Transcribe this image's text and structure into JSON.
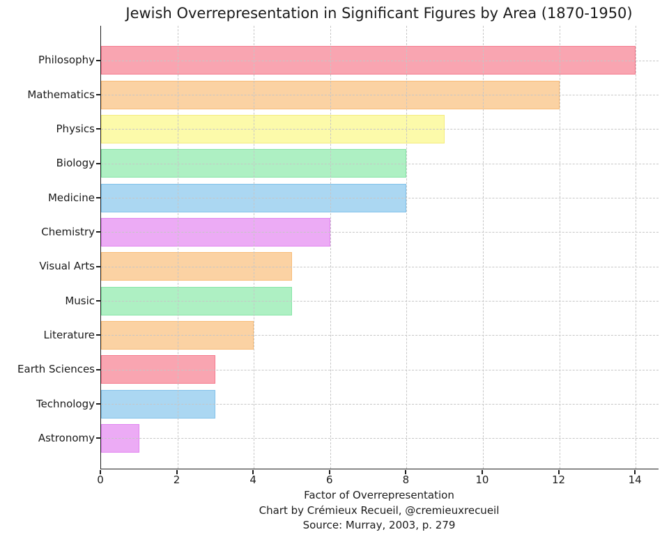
{
  "chart_data": {
    "type": "bar",
    "orientation": "horizontal",
    "title": "Jewish Overrepresentation in Significant Figures by Area (1870-1950)",
    "xlabel": "Factor of Overrepresentation",
    "credit": "Chart by Crémieux Recueil, @cremieuxrecueil",
    "source": "Source: Murray, 2003, p. 279",
    "categories": [
      "Philosophy",
      "Mathematics",
      "Physics",
      "Biology",
      "Medicine",
      "Chemistry",
      "Visual Arts",
      "Music",
      "Literature",
      "Earth Sciences",
      "Technology",
      "Astronomy"
    ],
    "values": [
      14,
      12,
      9,
      8,
      8,
      6,
      5,
      5,
      4,
      3,
      3,
      1
    ],
    "bar_colors": [
      "#F9A5B1",
      "#FBD2A3",
      "#FCFAAA",
      "#AEF0C3",
      "#ABD7F2",
      "#ECABF5",
      "#FBD2A3",
      "#AEF0C3",
      "#FBD2A3",
      "#F9A5B1",
      "#ABD7F2",
      "#ECABF5"
    ],
    "bar_edge_colors": [
      "#F5798D",
      "#F8BC77",
      "#F4EC7D",
      "#85E5A6",
      "#82C2EA",
      "#E184F0",
      "#F8BC77",
      "#85E5A6",
      "#F8BC77",
      "#F5798D",
      "#82C2EA",
      "#E184F0"
    ],
    "xticks": [
      0,
      2,
      4,
      6,
      8,
      10,
      12,
      14
    ],
    "xlim": [
      0,
      14.6
    ],
    "grid": "dashed",
    "grid_color": "#c6c6c6",
    "axis_color": "#1a1a1a",
    "text_color": "#1a1a1a",
    "background_color": "#ffffff",
    "legend": "none"
  }
}
